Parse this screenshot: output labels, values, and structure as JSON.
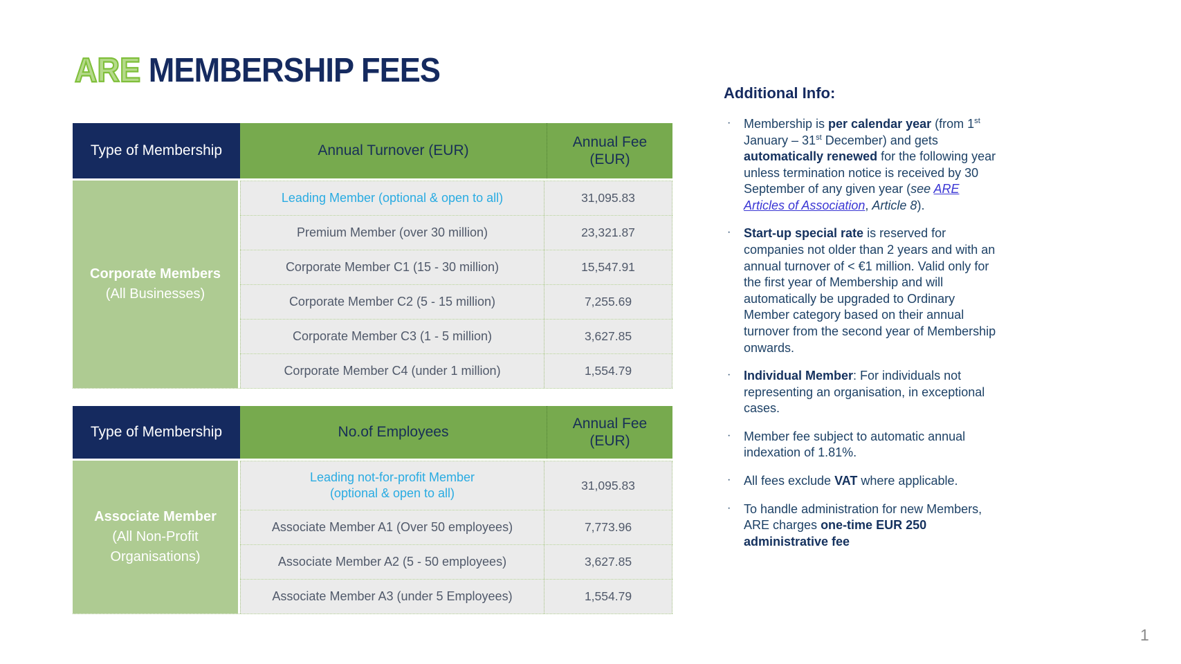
{
  "slide": {
    "title": {
      "highlight": "ARE",
      "rest": " MEMBERSHIP FEES"
    },
    "page_number": "1"
  },
  "colors": {
    "navy": "#152a5f",
    "table_green": "#77aa4e",
    "group_light_green": "#aecb92",
    "cell_gray": "#ebebeb",
    "highlight_cyan": "#29abe2",
    "link_blue": "#3a36d4",
    "title_green": "#8dc63f"
  },
  "tables": [
    {
      "columns": [
        "Type of Membership",
        "Annual Turnover (EUR)",
        "Annual Fee (EUR)"
      ],
      "group": {
        "bold": "Corporate Members",
        "rest": " (All Businesses)"
      },
      "rows": [
        {
          "label": "Leading Member (optional & open to all)",
          "fee": "31,095.83",
          "highlight": true
        },
        {
          "label": "Premium Member (over 30 million)",
          "fee": "23,321.87",
          "highlight": false
        },
        {
          "label": "Corporate Member C1 (15 - 30 million)",
          "fee": "15,547.91",
          "highlight": false
        },
        {
          "label": "Corporate Member C2 (5 - 15 million)",
          "fee": "7,255.69",
          "highlight": false
        },
        {
          "label": "Corporate Member C3 (1 - 5 million)",
          "fee": "3,627.85",
          "highlight": false
        },
        {
          "label": "Corporate Member C4 (under 1 million)",
          "fee": "1,554.79",
          "highlight": false
        }
      ]
    },
    {
      "columns": [
        "Type of Membership",
        "No.of Employees",
        "Annual Fee (EUR)"
      ],
      "group": {
        "bold": "Associate Member",
        "rest": " (All Non-Profit Organisations)"
      },
      "rows": [
        {
          "label": "Leading not-for-profit Member\n(optional & open to all)",
          "fee": "31,095.83",
          "highlight": true
        },
        {
          "label": "Associate Member A1 (Over 50 employees)",
          "fee": "7,773.96",
          "highlight": false
        },
        {
          "label": "Associate Member A2 (5 - 50 employees)",
          "fee": "3,627.85",
          "highlight": false
        },
        {
          "label": "Associate Member A3 (under 5 Employees)",
          "fee": "1,554.79",
          "highlight": false
        }
      ]
    }
  ],
  "additional_info": {
    "heading": "Additional Info:",
    "bullet_char": "·",
    "bullets": [
      [
        {
          "text": "Membership is "
        },
        {
          "text": "per calendar year",
          "bold": true
        },
        {
          "text": " (from 1"
        },
        {
          "text": "st",
          "sup": true
        },
        {
          "text": " January – 31"
        },
        {
          "text": "st",
          "sup": true
        },
        {
          "text": " December) and gets "
        },
        {
          "text": "automatically renewed",
          "bold": true
        },
        {
          "text": " for the following year unless termination notice is received by 30 September of any given year ("
        },
        {
          "text": "see ",
          "italic": true
        },
        {
          "text": "ARE Articles of Association",
          "italic": true,
          "link": true
        },
        {
          "text": ", "
        },
        {
          "text": "Article 8",
          "italic": true
        },
        {
          "text": ")."
        }
      ],
      [
        {
          "text": "Start-up special rate",
          "bold": true
        },
        {
          "text": " is reserved for companies not older than 2 years and with an annual turnover of < €1 million. Valid only for the first year of Membership and will automatically be upgraded to Ordinary Member category based on their annual turnover from the second year of Membership onwards."
        }
      ],
      [
        {
          "text": "Individual Member",
          "bold": true
        },
        {
          "text": ": For individuals not representing an organisation, in exceptional cases."
        }
      ],
      [
        {
          "text": "Member fee subject to automatic annual indexation of 1.81%."
        }
      ],
      [
        {
          "text": "All fees exclude "
        },
        {
          "text": "VAT",
          "bold": true
        },
        {
          "text": " where applicable."
        }
      ],
      [
        {
          "text": "To handle administration for new Members, ARE charges "
        },
        {
          "text": "one-time EUR 250 administrative fee",
          "bold": true
        }
      ]
    ]
  }
}
